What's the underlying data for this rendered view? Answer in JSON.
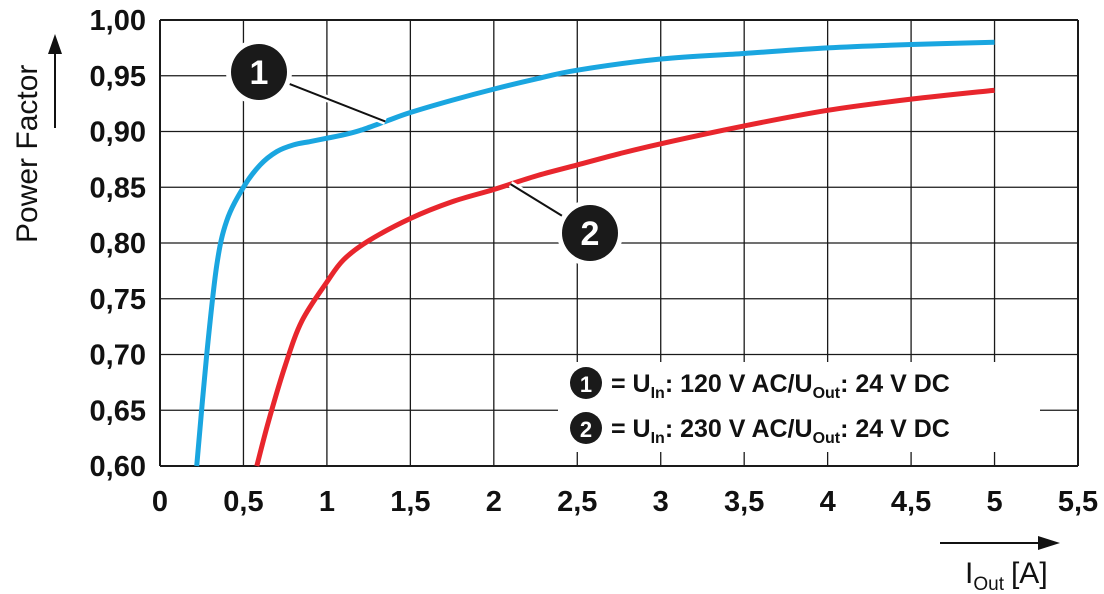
{
  "chart_data": {
    "type": "line",
    "ylabel": "Power Factor",
    "xlabel": {
      "main": "I",
      "sub": "Out",
      "unit": "[A]"
    },
    "xlim": [
      0,
      5.5
    ],
    "ylim": [
      0.6,
      1.0
    ],
    "x_ticks": [
      "0",
      "0,5",
      "1",
      "1,5",
      "2",
      "2,5",
      "3",
      "3,5",
      "4",
      "4,5",
      "5",
      "5,5"
    ],
    "y_ticks": [
      "0,60",
      "0,65",
      "0,70",
      "0,75",
      "0,80",
      "0,85",
      "0,90",
      "0,95",
      "1,00"
    ],
    "grid": true,
    "series": [
      {
        "marker": "1",
        "color": "#1aa6e0",
        "legend": {
          "eq": "= U",
          "sub1": "In",
          "mid": ": 120 V AC/U",
          "sub2": "Out",
          "end": ": 24 V DC"
        },
        "points": [
          [
            0.22,
            0.6
          ],
          [
            0.28,
            0.7
          ],
          [
            0.34,
            0.78
          ],
          [
            0.4,
            0.82
          ],
          [
            0.5,
            0.85
          ],
          [
            0.6,
            0.87
          ],
          [
            0.7,
            0.882
          ],
          [
            0.8,
            0.888
          ],
          [
            0.9,
            0.891
          ],
          [
            1.0,
            0.894
          ],
          [
            1.1,
            0.897
          ],
          [
            1.2,
            0.901
          ],
          [
            1.35,
            0.909
          ],
          [
            1.5,
            0.917
          ],
          [
            1.75,
            0.928
          ],
          [
            2.0,
            0.938
          ],
          [
            2.25,
            0.947
          ],
          [
            2.5,
            0.955
          ],
          [
            3.0,
            0.965
          ],
          [
            3.5,
            0.97
          ],
          [
            4.0,
            0.975
          ],
          [
            4.5,
            0.978
          ],
          [
            5.0,
            0.98
          ]
        ]
      },
      {
        "marker": "2",
        "color": "#e8262d",
        "legend": {
          "eq": "= U",
          "sub1": "In",
          "mid": ": 230 V AC/U",
          "sub2": "Out",
          "end": ": 24 V DC"
        },
        "points": [
          [
            0.58,
            0.6
          ],
          [
            0.65,
            0.64
          ],
          [
            0.75,
            0.69
          ],
          [
            0.85,
            0.73
          ],
          [
            1.0,
            0.765
          ],
          [
            1.1,
            0.785
          ],
          [
            1.25,
            0.802
          ],
          [
            1.5,
            0.822
          ],
          [
            1.75,
            0.837
          ],
          [
            2.0,
            0.848
          ],
          [
            2.25,
            0.86
          ],
          [
            2.5,
            0.87
          ],
          [
            2.75,
            0.88
          ],
          [
            3.0,
            0.889
          ],
          [
            3.5,
            0.905
          ],
          [
            4.0,
            0.919
          ],
          [
            4.5,
            0.929
          ],
          [
            5.0,
            0.937
          ]
        ]
      }
    ],
    "callouts": [
      {
        "marker": "1",
        "series": 0,
        "at_x": 1.35
      },
      {
        "marker": "2",
        "series": 1,
        "at_x": 2.1
      }
    ]
  }
}
